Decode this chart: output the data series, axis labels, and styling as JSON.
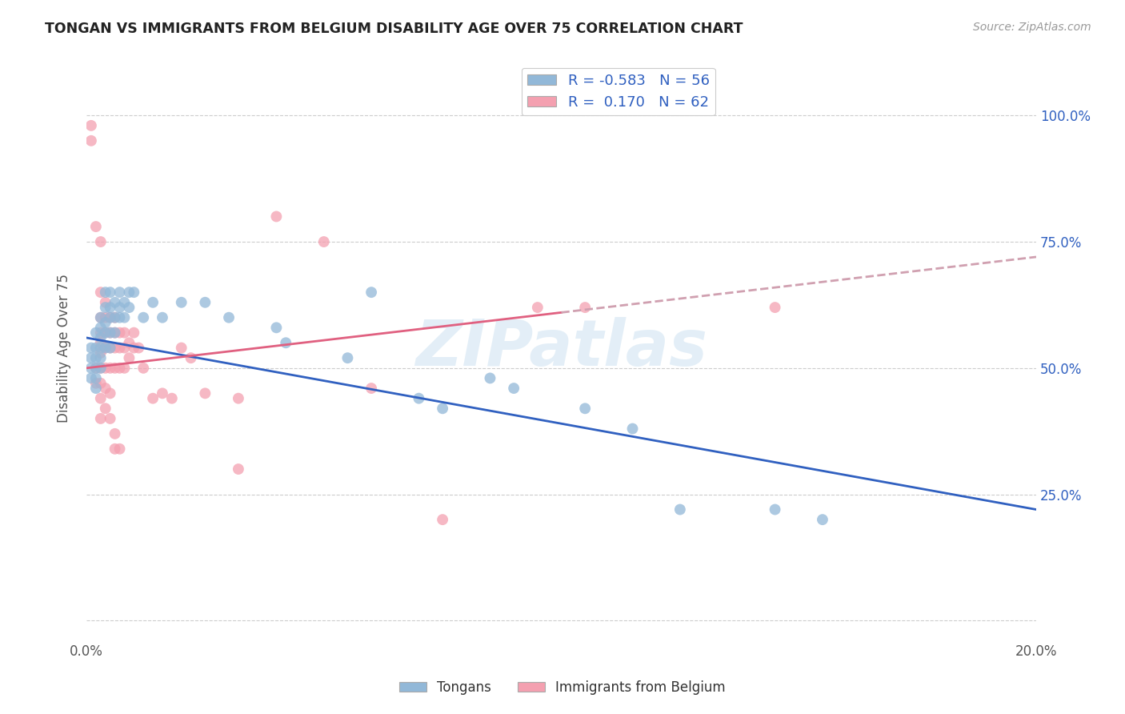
{
  "title": "TONGAN VS IMMIGRANTS FROM BELGIUM DISABILITY AGE OVER 75 CORRELATION CHART",
  "source": "Source: ZipAtlas.com",
  "ylabel": "Disability Age Over 75",
  "xlim": [
    0.0,
    0.2
  ],
  "ylim": [
    0.0,
    1.1
  ],
  "ytick_values": [
    0.0,
    0.25,
    0.5,
    0.75,
    1.0
  ],
  "xtick_values": [
    0.0,
    0.022,
    0.044,
    0.067,
    0.089,
    0.111,
    0.133,
    0.156,
    0.178,
    0.2
  ],
  "tongan_color": "#92b8d8",
  "belgium_color": "#f4a0b0",
  "tongan_line_color": "#3060c0",
  "belgium_line_color": "#e06080",
  "belgium_line_dashed_color": "#d0a0b0",
  "watermark_text": "ZIPatlas",
  "tongan_R": -0.583,
  "tongan_N": 56,
  "belgium_R": 0.17,
  "belgium_N": 62,
  "tongan_scatter": [
    [
      0.001,
      0.54
    ],
    [
      0.001,
      0.52
    ],
    [
      0.001,
      0.5
    ],
    [
      0.001,
      0.48
    ],
    [
      0.002,
      0.57
    ],
    [
      0.002,
      0.54
    ],
    [
      0.002,
      0.52
    ],
    [
      0.002,
      0.5
    ],
    [
      0.002,
      0.48
    ],
    [
      0.002,
      0.46
    ],
    [
      0.003,
      0.6
    ],
    [
      0.003,
      0.58
    ],
    [
      0.003,
      0.56
    ],
    [
      0.003,
      0.54
    ],
    [
      0.003,
      0.52
    ],
    [
      0.003,
      0.5
    ],
    [
      0.004,
      0.65
    ],
    [
      0.004,
      0.62
    ],
    [
      0.004,
      0.59
    ],
    [
      0.004,
      0.57
    ],
    [
      0.004,
      0.54
    ],
    [
      0.005,
      0.65
    ],
    [
      0.005,
      0.62
    ],
    [
      0.005,
      0.6
    ],
    [
      0.005,
      0.57
    ],
    [
      0.005,
      0.54
    ],
    [
      0.006,
      0.63
    ],
    [
      0.006,
      0.6
    ],
    [
      0.006,
      0.57
    ],
    [
      0.007,
      0.65
    ],
    [
      0.007,
      0.62
    ],
    [
      0.007,
      0.6
    ],
    [
      0.008,
      0.63
    ],
    [
      0.008,
      0.6
    ],
    [
      0.009,
      0.65
    ],
    [
      0.009,
      0.62
    ],
    [
      0.01,
      0.65
    ],
    [
      0.012,
      0.6
    ],
    [
      0.014,
      0.63
    ],
    [
      0.016,
      0.6
    ],
    [
      0.02,
      0.63
    ],
    [
      0.025,
      0.63
    ],
    [
      0.03,
      0.6
    ],
    [
      0.04,
      0.58
    ],
    [
      0.042,
      0.55
    ],
    [
      0.055,
      0.52
    ],
    [
      0.06,
      0.65
    ],
    [
      0.07,
      0.44
    ],
    [
      0.075,
      0.42
    ],
    [
      0.085,
      0.48
    ],
    [
      0.09,
      0.46
    ],
    [
      0.105,
      0.42
    ],
    [
      0.115,
      0.38
    ],
    [
      0.125,
      0.22
    ],
    [
      0.145,
      0.22
    ],
    [
      0.155,
      0.2
    ]
  ],
  "belgium_scatter": [
    [
      0.001,
      0.98
    ],
    [
      0.001,
      0.95
    ],
    [
      0.002,
      0.78
    ],
    [
      0.002,
      0.5
    ],
    [
      0.002,
      0.47
    ],
    [
      0.003,
      0.75
    ],
    [
      0.003,
      0.65
    ],
    [
      0.003,
      0.6
    ],
    [
      0.003,
      0.57
    ],
    [
      0.003,
      0.55
    ],
    [
      0.003,
      0.53
    ],
    [
      0.003,
      0.5
    ],
    [
      0.003,
      0.47
    ],
    [
      0.003,
      0.44
    ],
    [
      0.003,
      0.4
    ],
    [
      0.004,
      0.63
    ],
    [
      0.004,
      0.6
    ],
    [
      0.004,
      0.57
    ],
    [
      0.004,
      0.54
    ],
    [
      0.004,
      0.5
    ],
    [
      0.004,
      0.46
    ],
    [
      0.004,
      0.42
    ],
    [
      0.005,
      0.6
    ],
    [
      0.005,
      0.57
    ],
    [
      0.005,
      0.54
    ],
    [
      0.005,
      0.5
    ],
    [
      0.005,
      0.45
    ],
    [
      0.005,
      0.4
    ],
    [
      0.006,
      0.6
    ],
    [
      0.006,
      0.57
    ],
    [
      0.006,
      0.54
    ],
    [
      0.006,
      0.5
    ],
    [
      0.006,
      0.37
    ],
    [
      0.006,
      0.34
    ],
    [
      0.007,
      0.57
    ],
    [
      0.007,
      0.54
    ],
    [
      0.007,
      0.5
    ],
    [
      0.007,
      0.34
    ],
    [
      0.008,
      0.57
    ],
    [
      0.008,
      0.54
    ],
    [
      0.008,
      0.5
    ],
    [
      0.009,
      0.55
    ],
    [
      0.009,
      0.52
    ],
    [
      0.01,
      0.57
    ],
    [
      0.01,
      0.54
    ],
    [
      0.011,
      0.54
    ],
    [
      0.012,
      0.5
    ],
    [
      0.014,
      0.44
    ],
    [
      0.016,
      0.45
    ],
    [
      0.018,
      0.44
    ],
    [
      0.02,
      0.54
    ],
    [
      0.022,
      0.52
    ],
    [
      0.025,
      0.45
    ],
    [
      0.032,
      0.44
    ],
    [
      0.032,
      0.3
    ],
    [
      0.04,
      0.8
    ],
    [
      0.05,
      0.75
    ],
    [
      0.06,
      0.46
    ],
    [
      0.075,
      0.2
    ],
    [
      0.095,
      0.62
    ],
    [
      0.105,
      0.62
    ],
    [
      0.145,
      0.62
    ]
  ],
  "tongan_line": {
    "x0": 0.0,
    "y0": 0.56,
    "x1": 0.2,
    "y1": 0.22
  },
  "belgium_line_solid": {
    "x0": 0.0,
    "y0": 0.5,
    "x1": 0.1,
    "y1": 0.61
  },
  "belgium_line_dashed": {
    "x0": 0.1,
    "y0": 0.61,
    "x1": 0.2,
    "y1": 0.72
  }
}
